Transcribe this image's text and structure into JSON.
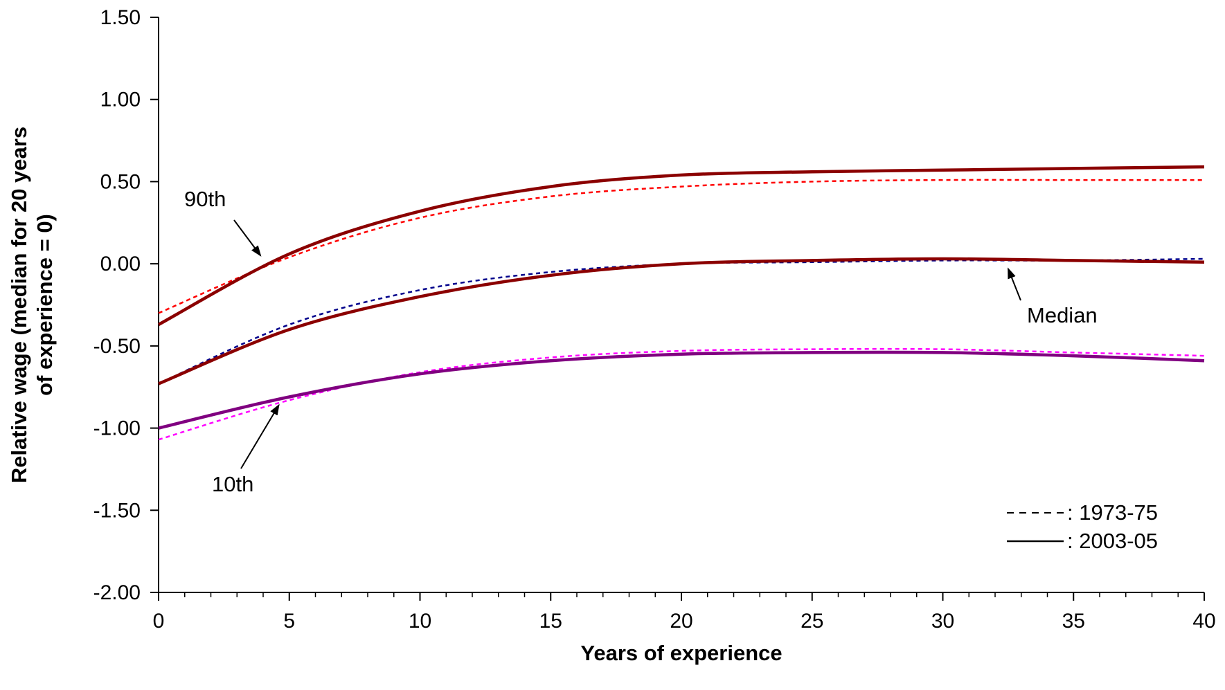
{
  "chart_data": {
    "type": "line",
    "title": "",
    "xlabel": "Years of experience",
    "ylabel_lines": [
      "Relative wage (median for 20 years",
      "of experience = 0)"
    ],
    "xlim": [
      0,
      40
    ],
    "ylim": [
      -2.0,
      1.5
    ],
    "x_ticks": [
      0,
      5,
      10,
      15,
      20,
      25,
      30,
      35,
      40
    ],
    "x_tick_labels": [
      "0",
      "5",
      "10",
      "15",
      "20",
      "25",
      "30",
      "35",
      "40"
    ],
    "y_ticks": [
      1.5,
      1.0,
      0.5,
      0.0,
      -0.5,
      -1.0,
      -1.5,
      -2.0
    ],
    "y_tick_labels": [
      "1.50",
      "1.00",
      "0.50",
      "0.00",
      "-0.50",
      "-1.00",
      "-1.50",
      "-2.00"
    ],
    "x": [
      0,
      5,
      10,
      15,
      20,
      25,
      30,
      35,
      40
    ],
    "series": [
      {
        "percentile": "90th",
        "period": "1973-75",
        "style": "dashed",
        "color": "#ff0000",
        "values": [
          -0.3,
          0.04,
          0.28,
          0.41,
          0.47,
          0.5,
          0.51,
          0.51,
          0.51
        ]
      },
      {
        "percentile": "90th",
        "period": "2003-05",
        "style": "solid",
        "color": "#8b0000",
        "values": [
          -0.37,
          0.06,
          0.32,
          0.47,
          0.54,
          0.56,
          0.57,
          0.58,
          0.59
        ]
      },
      {
        "percentile": "Median",
        "period": "1973-75",
        "style": "dashed",
        "color": "#00008b",
        "values": [
          -0.73,
          -0.37,
          -0.16,
          -0.05,
          0.0,
          0.01,
          0.02,
          0.02,
          0.03
        ]
      },
      {
        "percentile": "Median",
        "period": "2003-05",
        "style": "solid",
        "color": "#8b0000",
        "values": [
          -0.73,
          -0.4,
          -0.2,
          -0.07,
          0.0,
          0.02,
          0.03,
          0.02,
          0.01
        ]
      },
      {
        "percentile": "10th",
        "period": "1973-75",
        "style": "dashed",
        "color": "#ff00ff",
        "values": [
          -1.07,
          -0.83,
          -0.66,
          -0.57,
          -0.53,
          -0.52,
          -0.52,
          -0.54,
          -0.56
        ]
      },
      {
        "percentile": "10th",
        "period": "2003-05",
        "style": "solid",
        "color": "#800080",
        "values": [
          -1.0,
          -0.81,
          -0.67,
          -0.59,
          -0.55,
          -0.54,
          -0.54,
          -0.56,
          -0.59
        ]
      }
    ],
    "annotations": [
      {
        "text": "90th",
        "arrow_to": [
          3.9,
          0.05
        ]
      },
      {
        "text": "Median",
        "arrow_to": [
          32.5,
          -0.03
        ]
      },
      {
        "text": "10th",
        "arrow_to": [
          4.6,
          -0.86
        ]
      }
    ],
    "legend": {
      "placement": "bottom-right",
      "entries": [
        {
          "label": ": 1973-75",
          "style": "dashed"
        },
        {
          "label": ": 2003-05",
          "style": "solid"
        }
      ]
    },
    "grid": false
  }
}
